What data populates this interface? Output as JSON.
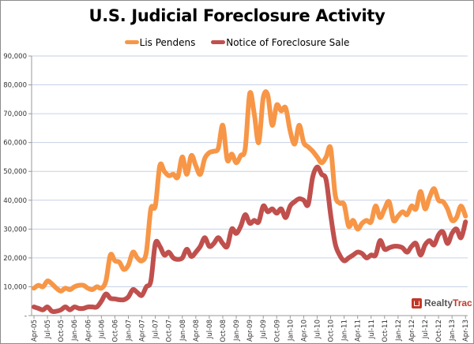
{
  "chart_data": {
    "type": "line",
    "title": "U.S. Judicial Foreclosure Activity",
    "xlabel": "",
    "ylabel": "",
    "ylim": [
      0,
      90000
    ],
    "yticks": [
      0,
      10000,
      20000,
      30000,
      40000,
      50000,
      60000,
      70000,
      80000,
      90000
    ],
    "ytick_labels": [
      "-",
      "10,000",
      "20,000",
      "30,000",
      "40,000",
      "50,000",
      "60,000",
      "70,000",
      "80,000",
      "90,000"
    ],
    "grid": true,
    "legend": "top",
    "x_tick_labels": [
      "Apr-05",
      "Jul-05",
      "Oct-05",
      "Jan-06",
      "Apr-06",
      "Jul-06",
      "Oct-06",
      "Jan-07",
      "Apr-07",
      "Jul-07",
      "Oct-07",
      "Jan-08",
      "Apr-08",
      "Jul-08",
      "Oct-08",
      "Jan-09",
      "Apr-09",
      "Jul-09",
      "Oct-09",
      "Jan-10",
      "Apr-10",
      "Jul-10",
      "Oct-10",
      "Jan-11",
      "Apr-11",
      "Jul-11",
      "Oct-11",
      "Jan-12",
      "Apr-12",
      "Jul-12",
      "Oct-12",
      "Jan-13",
      "Apr-13"
    ],
    "x_start": "Apr-05",
    "x_interval": "monthly",
    "series": [
      {
        "name": "Lis Pendens",
        "color": "#f79646",
        "values": [
          9500,
          10500,
          10000,
          12000,
          11000,
          9500,
          8500,
          9500,
          9000,
          10000,
          10500,
          10500,
          9500,
          9000,
          10000,
          9500,
          12000,
          21000,
          19000,
          18500,
          16000,
          17500,
          22000,
          20000,
          19000,
          22000,
          37000,
          38000,
          52000,
          50000,
          48500,
          49000,
          48000,
          55000,
          49000,
          55500,
          52000,
          49000,
          54500,
          56500,
          57000,
          58000,
          66000,
          54000,
          56000,
          53000,
          55500,
          58000,
          77000,
          70000,
          60000,
          75500,
          76500,
          66000,
          73000,
          71000,
          72000,
          64000,
          59500,
          66000,
          60000,
          58500,
          57000,
          55000,
          53000,
          55000,
          58000,
          42000,
          39000,
          38500,
          31000,
          33000,
          30000,
          32000,
          33000,
          32500,
          38000,
          34000,
          37000,
          39500,
          33000,
          34500,
          36000,
          35000,
          38000,
          37000,
          43000,
          37000,
          41000,
          44000,
          40000,
          39500,
          37000,
          33000,
          34000,
          38000,
          34500
        ]
      },
      {
        "name": "Notice of Foreclosure Sale",
        "color": "#c0504d",
        "values": [
          3000,
          2500,
          2000,
          3000,
          1500,
          1500,
          2000,
          3000,
          2000,
          3000,
          2500,
          2500,
          3000,
          3000,
          3000,
          5000,
          7500,
          6000,
          5800,
          5500,
          5500,
          6500,
          9000,
          8000,
          7000,
          10000,
          12000,
          25000,
          24000,
          21000,
          22000,
          20000,
          19500,
          20000,
          23000,
          20500,
          22000,
          24000,
          27000,
          24000,
          25000,
          27000,
          25000,
          24000,
          30000,
          28500,
          31000,
          35000,
          32000,
          33000,
          32500,
          38000,
          36000,
          37000,
          35500,
          37000,
          34000,
          38000,
          39500,
          40500,
          40000,
          38500,
          48000,
          51500,
          49000,
          47000,
          35000,
          25000,
          21000,
          19000,
          20000,
          21000,
          22000,
          21500,
          20000,
          21000,
          21000,
          26000,
          23000,
          23500,
          24000,
          24000,
          23500,
          22000,
          24000,
          25000,
          21000,
          24500,
          26000,
          24500,
          28000,
          29000,
          25000,
          28500,
          30000,
          27000,
          32500
        ]
      }
    ]
  },
  "branding": {
    "logo_part1": "Realty",
    "logo_part2": "Trac"
  }
}
